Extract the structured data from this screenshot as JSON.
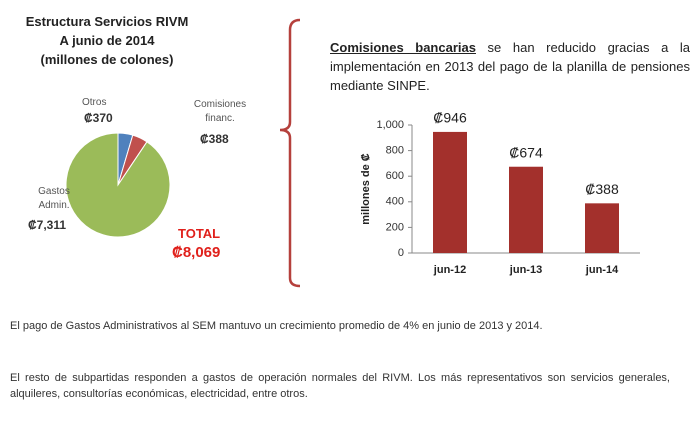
{
  "chart_data": [
    {
      "type": "pie",
      "title": [
        "Estructura Servicios RIVM",
        "A junio de 2014",
        "(millones de colones)"
      ],
      "categories": [
        "Otros",
        "Comisiones financ.",
        "Gastos Admin."
      ],
      "values": [
        370,
        388,
        7311
      ],
      "value_labels": [
        "₡370",
        "₡388",
        "₡7,311"
      ],
      "colors": [
        "#4f81bd",
        "#c0504d",
        "#9bbb59"
      ],
      "annotations": [
        "TOTAL",
        "₡8,069"
      ]
    },
    {
      "type": "bar",
      "ylabel": "millones de ₡",
      "categories": [
        "jun-12",
        "jun-13",
        "jun-14"
      ],
      "values": [
        946,
        674,
        388
      ],
      "value_labels": [
        "₡946",
        "₡674",
        "₡388"
      ],
      "color": "#a3302c",
      "ylim": [
        0,
        1000
      ],
      "yticks": [
        0,
        200,
        400,
        600,
        800,
        {
          "value": 1000,
          "label": "1,000"
        }
      ]
    }
  ],
  "note": {
    "highlight": "Comisiones bancarias",
    "text": " se han reducido gracias a la implementación en 2013 del pago de la planilla de pensiones mediante SINPE."
  },
  "paragraphs": [
    "El pago de Gastos Administrativos  al SEM mantuvo un crecimiento promedio de 4% en junio de 2013 y 2014.",
    "El resto de subpartidas responden a gastos de operación normales del RIVM. Los más representativos son servicios generales, alquileres, consultorías económicas, electricidad, entre otros."
  ]
}
